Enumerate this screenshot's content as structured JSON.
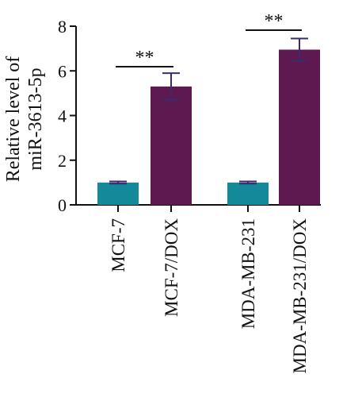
{
  "chart_data": {
    "type": "bar",
    "ylabel": [
      "Relative level of",
      "miR-3613-5p"
    ],
    "categories": [
      "MCF-7",
      "MCF-7/DOX",
      "MDA-MB-231",
      "MDA-MB-231/DOX"
    ],
    "values": [
      1.0,
      5.3,
      1.0,
      6.95
    ],
    "errors": [
      0.05,
      0.6,
      0.05,
      0.5
    ],
    "ylim": [
      0,
      8
    ],
    "yticks": [
      0,
      2,
      4,
      6,
      8
    ],
    "grid": false,
    "legend": "none",
    "significance": [
      {
        "from": 0,
        "to": 1,
        "label": "**"
      },
      {
        "from": 2,
        "to": 3,
        "label": "**"
      }
    ],
    "colors": [
      "#14899a",
      "#5e1a50",
      "#14899a",
      "#5e1a50"
    ],
    "error_color": "#3b2a6e"
  }
}
